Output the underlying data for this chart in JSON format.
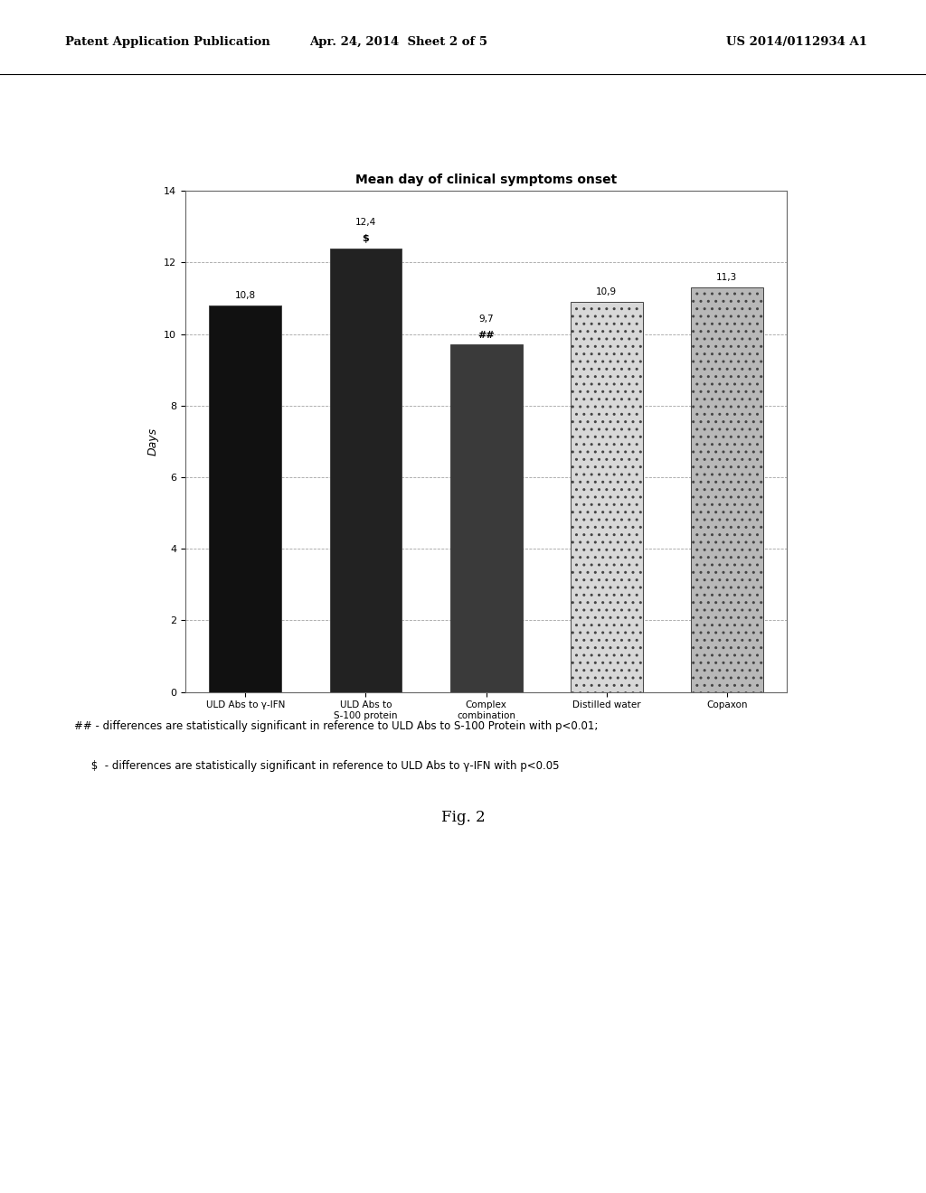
{
  "title": "Mean day of clinical symptoms onset",
  "categories": [
    "ULD Abs to γ-IFN",
    "ULD Abs to\nS-100 protein",
    "Complex\ncombination",
    "Distilled water",
    "Copaxon"
  ],
  "values": [
    10.8,
    12.4,
    9.7,
    10.9,
    11.3
  ],
  "bar_colors": [
    "#111111",
    "#222222",
    "#3a3a3a",
    "#d8d8d8",
    "#b8b8b8"
  ],
  "bar_hatches": [
    "",
    "",
    "",
    "..",
    ".."
  ],
  "value_labels": [
    "10,8",
    "12,4",
    "9,7",
    "10,9",
    "11,3"
  ],
  "annotations_above": [
    "",
    "$",
    "##",
    "",
    ""
  ],
  "ylabel": "Days",
  "ylim": [
    0,
    14
  ],
  "yticks": [
    0,
    2,
    4,
    6,
    8,
    10,
    12,
    14
  ],
  "footnote_line1": "## - differences are statistically significant in reference to ULD Abs to S-100 Protein with p<0.01;",
  "footnote_line2": "     $  - differences are statistically significant in reference to ULD Abs to γ-IFN with p<0.05",
  "fig_label": "Fig. 2",
  "header_left": "Patent Application Publication",
  "header_mid": "Apr. 24, 2014  Sheet 2 of 5",
  "header_right": "US 2014/0112934 A1",
  "background_color": "#ffffff",
  "chart_bg": "#ffffff",
  "border_color": "#666666"
}
